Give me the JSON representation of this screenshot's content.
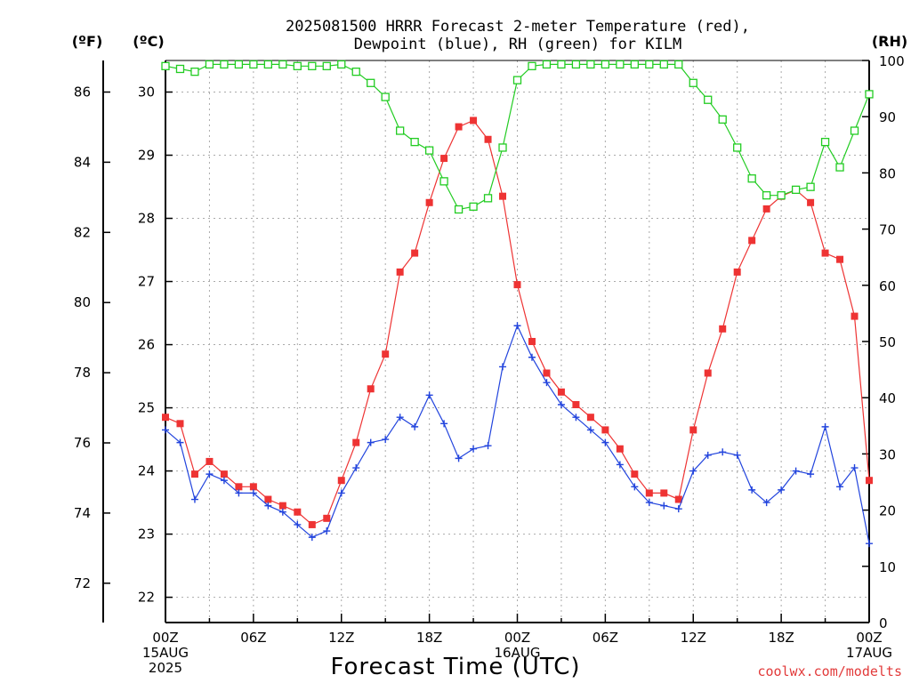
{
  "title_lines": [
    "2025081500 HRRR Forecast 2-meter Temperature (red),",
    "Dewpoint (blue), RH (green) for KILM"
  ],
  "axis_units": {
    "f": "(ºF)",
    "c": "(ºC)",
    "rh": "(RH)"
  },
  "xlabel": "Forecast Time (UTC)",
  "credit": "coolwx.com/modelts",
  "colors": {
    "temp": "#ee3333",
    "dew": "#2244dd",
    "rh": "#22cc22",
    "grid": "#aaaaaa",
    "credit": "#e23a3a"
  },
  "chart_data": {
    "type": "line",
    "title": "2025081500 HRRR Forecast 2-meter Temperature (red), Dewpoint (blue), RH (green) for KILM",
    "xlabel": "Forecast Time (UTC)",
    "x_hours": [
      0,
      1,
      2,
      3,
      4,
      5,
      6,
      7,
      8,
      9,
      10,
      11,
      12,
      13,
      14,
      15,
      16,
      17,
      18,
      19,
      20,
      21,
      22,
      23,
      24,
      25,
      26,
      27,
      28,
      29,
      30,
      31,
      32,
      33,
      34,
      35,
      36,
      37,
      38,
      39,
      40,
      41,
      42,
      43,
      44,
      45,
      46,
      47,
      48
    ],
    "x_ticks": [
      {
        "hour": 0,
        "lines": [
          "00Z",
          "15AUG",
          "2025"
        ]
      },
      {
        "hour": 6,
        "lines": [
          "06Z"
        ]
      },
      {
        "hour": 12,
        "lines": [
          "12Z"
        ]
      },
      {
        "hour": 18,
        "lines": [
          "18Z"
        ]
      },
      {
        "hour": 24,
        "lines": [
          "00Z",
          "16AUG"
        ]
      },
      {
        "hour": 30,
        "lines": [
          "06Z"
        ]
      },
      {
        "hour": 36,
        "lines": [
          "12Z"
        ]
      },
      {
        "hour": 42,
        "lines": [
          "18Z"
        ]
      },
      {
        "hour": 48,
        "lines": [
          "00Z",
          "17AUG"
        ]
      }
    ],
    "ylim_c": [
      21.6,
      30.5
    ],
    "yticks_c": [
      22,
      23,
      24,
      25,
      26,
      27,
      28,
      29,
      30
    ],
    "yticks_f": [
      72,
      74,
      76,
      78,
      80,
      82,
      84,
      86
    ],
    "ylim_rh": [
      0,
      100
    ],
    "yticks_rh": [
      0,
      10,
      20,
      30,
      40,
      50,
      60,
      70,
      80,
      90,
      100
    ],
    "grid": true,
    "series": [
      {
        "key": "temp",
        "marker": "square",
        "values": [
          24.85,
          24.75,
          23.95,
          24.15,
          23.95,
          23.75,
          23.75,
          23.55,
          23.45,
          23.35,
          23.15,
          23.25,
          23.85,
          24.45,
          25.3,
          25.85,
          27.15,
          27.45,
          28.25,
          28.95,
          29.45,
          29.55,
          29.25,
          28.35,
          26.95,
          26.05,
          25.55,
          25.25,
          25.05,
          24.85,
          24.65,
          24.35,
          23.95,
          23.65,
          23.65,
          23.55,
          24.65,
          25.55,
          26.25,
          27.15,
          27.65,
          28.15,
          28.35,
          28.45,
          28.25,
          27.45,
          27.35,
          26.45,
          23.85
        ]
      },
      {
        "key": "dew",
        "marker": "plus",
        "values": [
          24.65,
          24.45,
          23.55,
          23.95,
          23.85,
          23.65,
          23.65,
          23.45,
          23.35,
          23.15,
          22.95,
          23.05,
          23.65,
          24.05,
          24.45,
          24.5,
          24.85,
          24.7,
          25.2,
          24.75,
          24.2,
          24.35,
          24.4,
          25.65,
          26.3,
          25.8,
          25.4,
          25.05,
          24.85,
          24.65,
          24.45,
          24.1,
          23.75,
          23.5,
          23.45,
          23.4,
          24.0,
          24.25,
          24.3,
          24.25,
          23.7,
          23.5,
          23.7,
          24.0,
          23.95,
          24.7,
          23.75,
          24.05,
          22.85
        ]
      },
      {
        "key": "rh",
        "marker": "open-square",
        "values": [
          99,
          98.5,
          98,
          99.3,
          99.3,
          99.3,
          99.3,
          99.3,
          99.3,
          99,
          99,
          99,
          99.3,
          98,
          96,
          93.5,
          87.5,
          85.5,
          84,
          78.5,
          73.5,
          74,
          75.5,
          84.5,
          96.5,
          99,
          99.3,
          99.3,
          99.3,
          99.3,
          99.3,
          99.3,
          99.3,
          99.3,
          99.3,
          99.3,
          96,
          93,
          89.5,
          84.5,
          79,
          76,
          76,
          77,
          77.5,
          85.5,
          81,
          87.5,
          94
        ]
      }
    ]
  }
}
